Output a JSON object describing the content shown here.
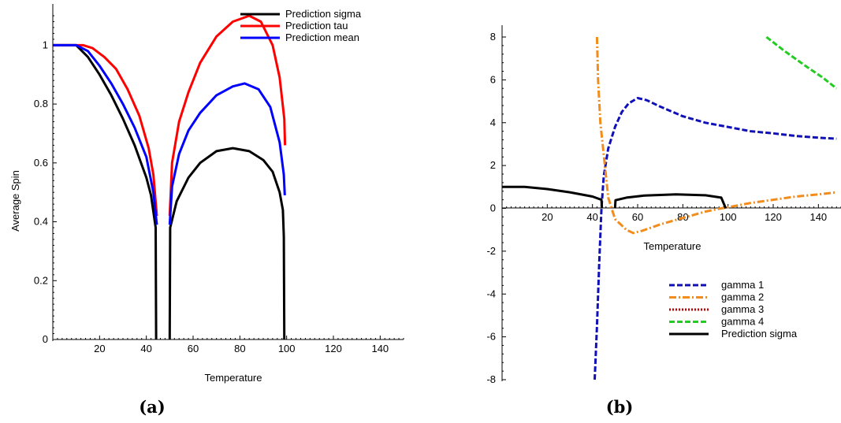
{
  "chart_data": [
    {
      "panel_label": "(a)",
      "type": "line",
      "xlabel": "Temperature",
      "ylabel": "Average Spin",
      "xlim": [
        0,
        150
      ],
      "ylim": [
        0,
        1.1
      ],
      "xticks": [
        20,
        40,
        60,
        80,
        100,
        120,
        140
      ],
      "yticks": [
        0,
        0.2,
        0.4,
        0.6,
        0.8,
        1
      ],
      "legend_position": "top-right",
      "series": [
        {
          "name": "Prediction sigma",
          "color": "#000000",
          "style": "solid",
          "segments": [
            [
              [
                0,
                1
              ],
              [
                10,
                1
              ],
              [
                15,
                0.96
              ],
              [
                20,
                0.9
              ],
              [
                25,
                0.83
              ],
              [
                30,
                0.75
              ],
              [
                35,
                0.66
              ],
              [
                40,
                0.55
              ],
              [
                42,
                0.49
              ],
              [
                44,
                0.38
              ],
              [
                44.2,
                0
              ]
            ],
            [
              [
                50,
                0
              ],
              [
                50.2,
                0.38
              ],
              [
                53,
                0.47
              ],
              [
                58,
                0.55
              ],
              [
                63,
                0.6
              ],
              [
                70,
                0.64
              ],
              [
                77,
                0.65
              ],
              [
                84,
                0.64
              ],
              [
                90,
                0.61
              ],
              [
                94,
                0.57
              ],
              [
                97,
                0.5
              ],
              [
                98.4,
                0.44
              ],
              [
                98.8,
                0.35
              ],
              [
                99,
                0
              ]
            ]
          ]
        },
        {
          "name": "Prediction tau",
          "color": "#ff0000",
          "style": "solid",
          "segments": [
            [
              [
                0,
                1
              ],
              [
                13,
                1
              ],
              [
                17,
                0.99
              ],
              [
                22,
                0.96
              ],
              [
                27,
                0.92
              ],
              [
                32,
                0.85
              ],
              [
                37,
                0.76
              ],
              [
                41,
                0.65
              ],
              [
                43,
                0.56
              ],
              [
                44.5,
                0.42
              ]
            ],
            [
              [
                50,
                0.42
              ],
              [
                51,
                0.6
              ],
              [
                54,
                0.74
              ],
              [
                58,
                0.84
              ],
              [
                63,
                0.94
              ],
              [
                70,
                1.03
              ],
              [
                77,
                1.08
              ],
              [
                84,
                1.1
              ],
              [
                89,
                1.08
              ],
              [
                94,
                1.0
              ],
              [
                97,
                0.89
              ],
              [
                99,
                0.75
              ],
              [
                99.3,
                0.66
              ]
            ]
          ]
        },
        {
          "name": "Prediction mean",
          "color": "#0000ff",
          "style": "solid",
          "segments": [
            [
              [
                0,
                1
              ],
              [
                10,
                1
              ],
              [
                15,
                0.98
              ],
              [
                20,
                0.93
              ],
              [
                25,
                0.87
              ],
              [
                30,
                0.8
              ],
              [
                35,
                0.72
              ],
              [
                40,
                0.62
              ],
              [
                43,
                0.5
              ],
              [
                44.5,
                0.39
              ]
            ],
            [
              [
                50,
                0.39
              ],
              [
                51,
                0.52
              ],
              [
                54,
                0.63
              ],
              [
                58,
                0.71
              ],
              [
                63,
                0.77
              ],
              [
                70,
                0.83
              ],
              [
                77,
                0.86
              ],
              [
                82,
                0.87
              ],
              [
                88,
                0.85
              ],
              [
                93,
                0.79
              ],
              [
                97,
                0.67
              ],
              [
                98.8,
                0.56
              ],
              [
                99.2,
                0.49
              ]
            ]
          ]
        }
      ]
    },
    {
      "panel_label": "(b)",
      "type": "line",
      "xlabel": "Temperature",
      "ylabel": "",
      "xlim": [
        0,
        150
      ],
      "ylim": [
        -8,
        8
      ],
      "xticks": [
        20,
        40,
        60,
        80,
        100,
        120,
        140
      ],
      "yticks": [
        -8,
        -6,
        -4,
        -2,
        0,
        2,
        4,
        6,
        8
      ],
      "legend_position": "bottom-right",
      "series": [
        {
          "name": "gamma 1",
          "color": "#1010b8",
          "style": "dashed",
          "points": [
            [
              41,
              -8
            ],
            [
              42,
              -5.5
            ],
            [
              43,
              -2.5
            ],
            [
              44,
              0
            ],
            [
              45,
              1.5
            ],
            [
              47,
              2.8
            ],
            [
              50,
              3.8
            ],
            [
              53,
              4.5
            ],
            [
              56,
              4.9
            ],
            [
              60,
              5.15
            ],
            [
              64,
              5.05
            ],
            [
              70,
              4.75
            ],
            [
              80,
              4.3
            ],
            [
              90,
              4.0
            ],
            [
              100,
              3.8
            ],
            [
              110,
              3.6
            ],
            [
              120,
              3.5
            ],
            [
              130,
              3.38
            ],
            [
              140,
              3.3
            ],
            [
              148,
              3.25
            ]
          ]
        },
        {
          "name": "gamma 2",
          "color": "#f28c1c",
          "style": "dashdot",
          "points": [
            [
              42,
              8
            ],
            [
              42.5,
              6
            ],
            [
              43.5,
              4
            ],
            [
              45,
              2.5
            ],
            [
              47,
              0.5
            ],
            [
              50,
              -0.5
            ],
            [
              55,
              -1
            ],
            [
              58,
              -1.15
            ],
            [
              62,
              -1.05
            ],
            [
              70,
              -0.75
            ],
            [
              80,
              -0.45
            ],
            [
              90,
              -0.15
            ],
            [
              97,
              0
            ],
            [
              100,
              0.05
            ],
            [
              110,
              0.25
            ],
            [
              120,
              0.4
            ],
            [
              130,
              0.55
            ],
            [
              140,
              0.65
            ],
            [
              148,
              0.75
            ]
          ]
        },
        {
          "name": "gamma 3",
          "color": "#cc0000",
          "style": "dotted",
          "points": []
        },
        {
          "name": "gamma 4",
          "color": "#22cc22",
          "style": "dashed",
          "points": [
            [
              117,
              8
            ],
            [
              125,
              7.35
            ],
            [
              135,
              6.6
            ],
            [
              142,
              6.1
            ],
            [
              148,
              5.6
            ]
          ]
        },
        {
          "name": "Prediction sigma",
          "color": "#000000",
          "style": "solid",
          "segments": [
            [
              [
                0,
                1
              ],
              [
                10,
                1
              ],
              [
                20,
                0.9
              ],
              [
                30,
                0.75
              ],
              [
                40,
                0.55
              ],
              [
                44,
                0.4
              ],
              [
                44.2,
                0
              ]
            ],
            [
              [
                50,
                0
              ],
              [
                50.2,
                0.38
              ],
              [
                55,
                0.5
              ],
              [
                63,
                0.6
              ],
              [
                77,
                0.65
              ],
              [
                90,
                0.61
              ],
              [
                97,
                0.5
              ],
              [
                99,
                0
              ]
            ]
          ]
        }
      ]
    }
  ]
}
